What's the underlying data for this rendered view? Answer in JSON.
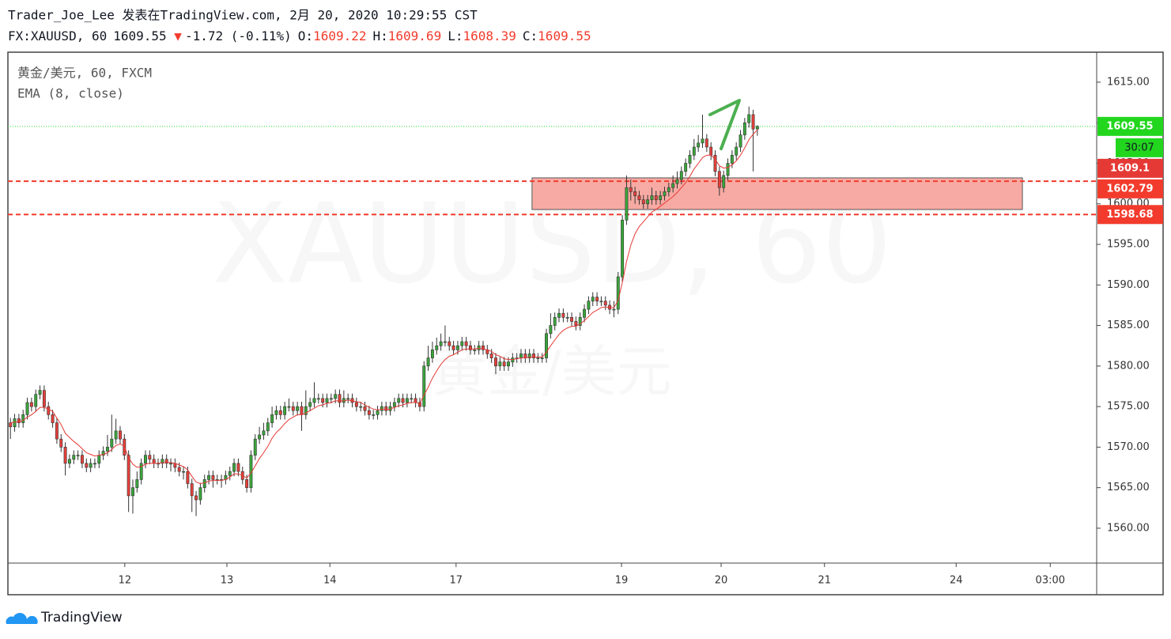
{
  "header": {
    "author_line": "Trader_Joe_Lee 发表在TradingView.com, 2月 20, 2020 10:29:55 CST",
    "symbol": "FX:XAUUSD, 60",
    "change": "-1.72 (-0.11%)",
    "o_label": "O:",
    "h_label": "H:",
    "l_label": "L:",
    "c_label": "C:"
  },
  "footer": {
    "brand": "TradingView"
  },
  "chart_data": {
    "type": "candlestick",
    "title": "黄金/美元, 60, FXCM",
    "watermark": "XAUUSD, 60",
    "watermark_sub": "黄金/美元",
    "up_color": "#3aa53a",
    "down_color": "#e5403a",
    "grid": false,
    "x": [
      0,
      1,
      2,
      3,
      4,
      5,
      6,
      7,
      8,
      9,
      10,
      11,
      12,
      13,
      14,
      15,
      16,
      17,
      18,
      19,
      20,
      21,
      22,
      23,
      24,
      25,
      26,
      27,
      28,
      29,
      30,
      31,
      32,
      33,
      34,
      35,
      36,
      37,
      38,
      39,
      40,
      41,
      42,
      43,
      44,
      45,
      46,
      47,
      48,
      49,
      50,
      51,
      52,
      53,
      54,
      55,
      56,
      57,
      58,
      59,
      60,
      61,
      62,
      63,
      64,
      65,
      66,
      67,
      68,
      69,
      70,
      71,
      72,
      73,
      74,
      75,
      76,
      77,
      78,
      79,
      80,
      81,
      82,
      83,
      84,
      85,
      86,
      87,
      88,
      89,
      90,
      91,
      92,
      93,
      94,
      95,
      96,
      97,
      98,
      99,
      100,
      101,
      102,
      103,
      104,
      105,
      106,
      107,
      108,
      109,
      110,
      111,
      112,
      113,
      114,
      115,
      116,
      117,
      118,
      119,
      120,
      121,
      122,
      123,
      124,
      125,
      126,
      127,
      128,
      129,
      130,
      131,
      132,
      133,
      134,
      135,
      136,
      137,
      138,
      139,
      140,
      141,
      142,
      143,
      144,
      145,
      146,
      147,
      148,
      149,
      150,
      151,
      152,
      153,
      154,
      155,
      156,
      157,
      158,
      159,
      160,
      161,
      162,
      163,
      164,
      165,
      166,
      167,
      168,
      169,
      170,
      171,
      172,
      173,
      174,
      175,
      176,
      177
    ],
    "open": [
      1573,
      1572.5,
      1573.5,
      1573,
      1574,
      1575.5,
      1575,
      1576.5,
      1577,
      1575,
      1574,
      1573,
      1571,
      1570,
      1568,
      1568.5,
      1569,
      1569,
      1568,
      1567.5,
      1568,
      1568,
      1569,
      1569.5,
      1570,
      1571,
      1572,
      1571,
      1569,
      1564,
      1565,
      1566,
      1568,
      1569,
      1568.5,
      1568,
      1568,
      1568.5,
      1568,
      1568,
      1567.5,
      1567,
      1567,
      1565.5,
      1564,
      1563.5,
      1565,
      1566,
      1566.5,
      1566,
      1566,
      1566,
      1566.5,
      1567,
      1568,
      1567,
      1566,
      1565,
      1569,
      1571,
      1571.5,
      1572,
      1573,
      1574,
      1574.5,
      1574,
      1575,
      1575,
      1574.5,
      1575,
      1574,
      1575,
      1575.5,
      1576,
      1576,
      1575.5,
      1576,
      1576,
      1576.5,
      1575.5,
      1576,
      1576,
      1575.5,
      1575,
      1575,
      1574.5,
      1574,
      1574,
      1574.5,
      1575,
      1574.5,
      1575,
      1575.5,
      1576,
      1575.5,
      1576,
      1576,
      1575.5,
      1575,
      1580,
      1581,
      1582,
      1582.5,
      1583,
      1583,
      1582.5,
      1582,
      1582.5,
      1583,
      1582.5,
      1582,
      1582,
      1582.5,
      1582,
      1581.5,
      1581,
      1580,
      1580.5,
      1580,
      1580.5,
      1581,
      1581,
      1581.5,
      1581,
      1581.5,
      1581,
      1581,
      1581,
      1584,
      1585,
      1586,
      1586.5,
      1586,
      1586,
      1585.5,
      1585,
      1586,
      1587,
      1588,
      1588.5,
      1588,
      1588,
      1587.5,
      1587,
      1587,
      1591,
      1598,
      1602,
      1601.5,
      1601,
      1600.5,
      1600,
      1600.5,
      1601,
      1600.5,
      1601,
      1601.5,
      1602,
      1602.5,
      1603,
      1604,
      1605,
      1606,
      1607,
      1607.5,
      1608,
      1607,
      1606,
      1604,
      1602,
      1603.5,
      1605,
      1606,
      1607,
      1608.5,
      1610,
      1611,
      1609.22
    ],
    "high": [
      1573.6,
      1574.1,
      1574.1,
      1574.6,
      1576.1,
      1576.1,
      1577.1,
      1577.6,
      1577.6,
      1575.6,
      1574.6,
      1573.6,
      1571.6,
      1570.6,
      1569.1,
      1569.6,
      1569.6,
      1569.6,
      1568.6,
      1568.6,
      1568.6,
      1569.6,
      1570.1,
      1571.5,
      1574,
      1573.5,
      1572.6,
      1571.6,
      1569.6,
      1566,
      1567,
      1568.6,
      1569.6,
      1569.6,
      1569.1,
      1568.6,
      1569.1,
      1569.1,
      1568.6,
      1568.6,
      1568.1,
      1567.6,
      1567.6,
      1566.1,
      1564.6,
      1565.6,
      1566.6,
      1567.1,
      1567.1,
      1566.6,
      1566.6,
      1567.1,
      1567.6,
      1568.6,
      1568.6,
      1567.6,
      1566.6,
      1569.6,
      1571.6,
      1572.5,
      1573,
      1573.6,
      1575,
      1575.1,
      1575.1,
      1575.6,
      1576,
      1575.6,
      1575.6,
      1575.6,
      1577,
      1576.1,
      1578,
      1576.6,
      1576.6,
      1576.6,
      1576.6,
      1577.1,
      1577.1,
      1577,
      1576.6,
      1576.6,
      1576.1,
      1575.6,
      1575.6,
      1575.1,
      1574.6,
      1575.1,
      1575.6,
      1575.6,
      1575.6,
      1576.1,
      1576.6,
      1576.6,
      1576.6,
      1576.6,
      1576.6,
      1576.1,
      1580.6,
      1582.5,
      1583,
      1583.5,
      1584,
      1585,
      1583.6,
      1583.1,
      1583.1,
      1583.6,
      1583.6,
      1583.1,
      1582.6,
      1583.1,
      1583.1,
      1582.6,
      1582.1,
      1581.6,
      1581.1,
      1581.1,
      1581.1,
      1581.6,
      1581.6,
      1582.1,
      1582.1,
      1582.1,
      1582.1,
      1581.6,
      1581.6,
      1584.6,
      1586.5,
      1586.6,
      1587.1,
      1587.1,
      1586.6,
      1586.6,
      1586.1,
      1586.6,
      1587.6,
      1588.6,
      1589.1,
      1589.1,
      1588.6,
      1588.6,
      1588.1,
      1588,
      1591.6,
      1598.6,
      1603.5,
      1603,
      1602.1,
      1601.6,
      1601.1,
      1601.1,
      1602,
      1601.6,
      1601.6,
      1602.1,
      1602.6,
      1603.5,
      1604,
      1604.6,
      1605.6,
      1606.6,
      1608,
      1608.5,
      1611,
      1608.6,
      1607.6,
      1606.6,
      1604.6,
      1604.1,
      1605.6,
      1606.6,
      1607.6,
      1609.1,
      1610.6,
      1612,
      1611.6,
      1609.69
    ],
    "low": [
      1571,
      1571.9,
      1572.4,
      1572.4,
      1573.4,
      1574.4,
      1574.4,
      1575.9,
      1574.4,
      1573.4,
      1572.4,
      1570.4,
      1569.4,
      1566.5,
      1567.4,
      1567.9,
      1568.4,
      1567.4,
      1566.9,
      1566.9,
      1567.4,
      1567.4,
      1568.4,
      1568.9,
      1569.4,
      1570.4,
      1570.4,
      1568.4,
      1562,
      1561.8,
      1564.4,
      1565.4,
      1567.4,
      1567.9,
      1567.4,
      1567.4,
      1567.4,
      1567.4,
      1567,
      1566.9,
      1566.4,
      1566,
      1564.9,
      1562,
      1561.5,
      1562.9,
      1564.4,
      1565.4,
      1565,
      1565.4,
      1565,
      1565.4,
      1565.9,
      1566.4,
      1566.4,
      1565.4,
      1564.4,
      1564.4,
      1568.4,
      1570.4,
      1570.9,
      1571.4,
      1572.4,
      1573.4,
      1573.4,
      1573.4,
      1574.4,
      1573.9,
      1573.9,
      1572,
      1573.4,
      1574.4,
      1574.9,
      1575.4,
      1574.9,
      1574.9,
      1575.4,
      1575.4,
      1574.9,
      1574.9,
      1575.4,
      1574.9,
      1574.4,
      1574.4,
      1573.9,
      1573.4,
      1573.4,
      1573.4,
      1573.9,
      1573.9,
      1573.9,
      1574.4,
      1574.9,
      1574.9,
      1574.9,
      1575.4,
      1574.9,
      1574.4,
      1574.4,
      1579.4,
      1580.4,
      1581.4,
      1581.9,
      1582.4,
      1581.9,
      1581.4,
      1581.4,
      1581.9,
      1581.9,
      1581.4,
      1581.4,
      1581.4,
      1581.4,
      1580.9,
      1580.4,
      1579,
      1579.4,
      1579.4,
      1579.4,
      1579.9,
      1580.4,
      1580.4,
      1580.4,
      1580.4,
      1580.4,
      1580.4,
      1580.4,
      1580.4,
      1583.4,
      1584.4,
      1585.4,
      1585.4,
      1585.4,
      1584.9,
      1584.4,
      1584.4,
      1585.4,
      1586.4,
      1587.4,
      1587.4,
      1587.4,
      1586.9,
      1586.4,
      1586,
      1586.4,
      1590.4,
      1597.4,
      1600.4,
      1600,
      1599.9,
      1599.4,
      1599.4,
      1599.9,
      1599.9,
      1599.9,
      1600.4,
      1600.9,
      1601.4,
      1601.9,
      1602.4,
      1603.4,
      1604.4,
      1605.4,
      1606.4,
      1606.9,
      1606.4,
      1605.4,
      1603.4,
      1601,
      1601.4,
      1602.9,
      1604.4,
      1605.4,
      1606.4,
      1607.9,
      1609.4,
      1604,
      1608.39
    ],
    "close": [
      1572.5,
      1573.5,
      1573,
      1574,
      1575.5,
      1575,
      1576.5,
      1577,
      1575,
      1574,
      1573,
      1571,
      1570,
      1568,
      1568.5,
      1569,
      1569,
      1568,
      1567.5,
      1568,
      1568,
      1569,
      1569.5,
      1570,
      1571,
      1572,
      1571,
      1569,
      1564,
      1565,
      1566,
      1568,
      1569,
      1568.5,
      1568,
      1568,
      1568.5,
      1568,
      1568,
      1567.5,
      1567,
      1567,
      1565.5,
      1564,
      1563.5,
      1565,
      1566,
      1566.5,
      1566,
      1566,
      1566,
      1566.5,
      1567,
      1568,
      1567,
      1566,
      1565,
      1569,
      1571,
      1571.5,
      1572,
      1573,
      1574,
      1574.5,
      1574,
      1575,
      1575,
      1574.5,
      1575,
      1574,
      1575,
      1575.5,
      1576,
      1576,
      1575.5,
      1576,
      1576,
      1576.5,
      1575.5,
      1576,
      1576,
      1575.5,
      1575,
      1575,
      1574.5,
      1574,
      1574,
      1574.5,
      1575,
      1574.5,
      1575,
      1575.5,
      1576,
      1575.5,
      1576,
      1576,
      1575.5,
      1575,
      1580,
      1581,
      1582,
      1582.5,
      1583,
      1583,
      1582.5,
      1582,
      1582.5,
      1583,
      1582.5,
      1582,
      1582,
      1582.5,
      1582,
      1581.5,
      1581,
      1580,
      1580.5,
      1580,
      1580.5,
      1581,
      1581,
      1581.5,
      1581,
      1581.5,
      1581,
      1581,
      1581,
      1584,
      1585,
      1586,
      1586.5,
      1586,
      1586,
      1585.5,
      1585,
      1586,
      1587,
      1588,
      1588.5,
      1588,
      1588,
      1587.5,
      1587,
      1587,
      1591,
      1598,
      1602,
      1601.5,
      1601,
      1600.5,
      1600,
      1600.5,
      1601,
      1600.5,
      1601,
      1601.5,
      1602,
      1602.5,
      1603,
      1604,
      1605,
      1606,
      1607,
      1607.5,
      1608,
      1607,
      1606,
      1604,
      1602,
      1603.5,
      1605,
      1606,
      1607,
      1608.5,
      1610,
      1611,
      1609.22,
      1609.55
    ],
    "ema": {
      "name": "EMA (8, close)",
      "color": "#e53935",
      "values": [
        1573,
        1573.1,
        1573.1,
        1573.3,
        1573.7,
        1574,
        1574.4,
        1574.9,
        1574.9,
        1574.7,
        1574.4,
        1573.6,
        1572.8,
        1571.7,
        1571.2,
        1570.7,
        1570.3,
        1569.8,
        1569.3,
        1569.1,
        1568.9,
        1569,
        1569.1,
        1569.3,
        1569.7,
        1570.2,
        1570.4,
        1570.1,
        1568.7,
        1567.9,
        1567.5,
        1567.6,
        1567.9,
        1568,
        1568,
        1568,
        1568.1,
        1568.1,
        1568.1,
        1568,
        1567.8,
        1567.6,
        1567.2,
        1566.4,
        1565.7,
        1565.5,
        1565.6,
        1565.8,
        1565.9,
        1565.9,
        1565.9,
        1566,
        1566.3,
        1566.7,
        1566.7,
        1566.5,
        1566.2,
        1566.8,
        1567.7,
        1568.6,
        1569.3,
        1570.1,
        1571.1,
        1571.8,
        1572.3,
        1572.9,
        1573.4,
        1573.7,
        1574,
        1574,
        1574.2,
        1574.5,
        1574.8,
        1575.1,
        1575.2,
        1575.4,
        1575.5,
        1575.7,
        1575.7,
        1575.7,
        1575.8,
        1575.7,
        1575.6,
        1575.5,
        1575.2,
        1574.9,
        1574.7,
        1574.6,
        1574.7,
        1574.6,
        1574.7,
        1574.9,
        1575.1,
        1575.2,
        1575.4,
        1575.5,
        1575.5,
        1575.4,
        1576.4,
        1577.4,
        1578.5,
        1579.4,
        1580.2,
        1580.8,
        1581.2,
        1581.4,
        1581.7,
        1582,
        1582.1,
        1582.1,
        1582.1,
        1582.2,
        1582.1,
        1582,
        1581.8,
        1581.4,
        1581.2,
        1580.9,
        1580.8,
        1580.8,
        1580.9,
        1581,
        1581,
        1581.1,
        1581.1,
        1581.1,
        1581.1,
        1581.7,
        1582.5,
        1583.2,
        1583.9,
        1584.4,
        1584.7,
        1584.9,
        1584.9,
        1585.2,
        1585.6,
        1586.1,
        1586.6,
        1586.9,
        1587.2,
        1587.3,
        1587.2,
        1587.2,
        1588.1,
        1590.3,
        1592.9,
        1594.9,
        1596.3,
        1597.2,
        1597.8,
        1598.4,
        1599,
        1599.3,
        1599.7,
        1600.1,
        1600.5,
        1600.9,
        1601.4,
        1602,
        1602.6,
        1603.4,
        1604.3,
        1605,
        1605.7,
        1606,
        1606,
        1605.5,
        1604.7,
        1604.4,
        1604.5,
        1604.8,
        1605.3,
        1606,
        1606.9,
        1607.9,
        1608.6,
        1609.1,
        1609.22
      ]
    },
    "xlim": [
      -0.6,
      257.4
    ],
    "xticks": [
      {
        "value": 27.1,
        "label": "12"
      },
      {
        "value": 51.3,
        "label": "13"
      },
      {
        "value": 75.7,
        "label": "14"
      },
      {
        "value": 105.6,
        "label": "17"
      },
      {
        "value": 144.8,
        "label": "19"
      },
      {
        "value": 168.4,
        "label": "20"
      },
      {
        "value": 192.9,
        "label": "21"
      },
      {
        "value": 224.1,
        "label": "24"
      },
      {
        "value": 246.4,
        "label": "03:00"
      }
    ],
    "ylim": [
      1555.7,
      1618.7
    ],
    "yticks": [
      {
        "value": 1560,
        "label": "1560.00"
      },
      {
        "value": 1565,
        "label": "1565.00"
      },
      {
        "value": 1570,
        "label": "1570.00"
      },
      {
        "value": 1575,
        "label": "1575.00"
      },
      {
        "value": 1580,
        "label": "1580.00"
      },
      {
        "value": 1585,
        "label": "1585.00"
      },
      {
        "value": 1590,
        "label": "1590.00"
      },
      {
        "value": 1595,
        "label": "1595.00"
      },
      {
        "value": 1600,
        "label": "1600.00"
      },
      {
        "value": 1605,
        "label": "1605.00"
      },
      {
        "value": 1610,
        "label": "1610.00"
      },
      {
        "value": 1615,
        "label": "1615.00"
      }
    ],
    "last_price_color": "#22d61e",
    "countdown": "30:07",
    "hlines": [
      {
        "value": 1602.79,
        "color": "#f23b2c"
      },
      {
        "value": 1598.68,
        "color": "#f23b2c"
      }
    ],
    "zone": {
      "x": [
        123.6,
        239.8
      ],
      "y": [
        1599.3,
        1603.2
      ],
      "color": "#f7aaa3"
    }
  }
}
